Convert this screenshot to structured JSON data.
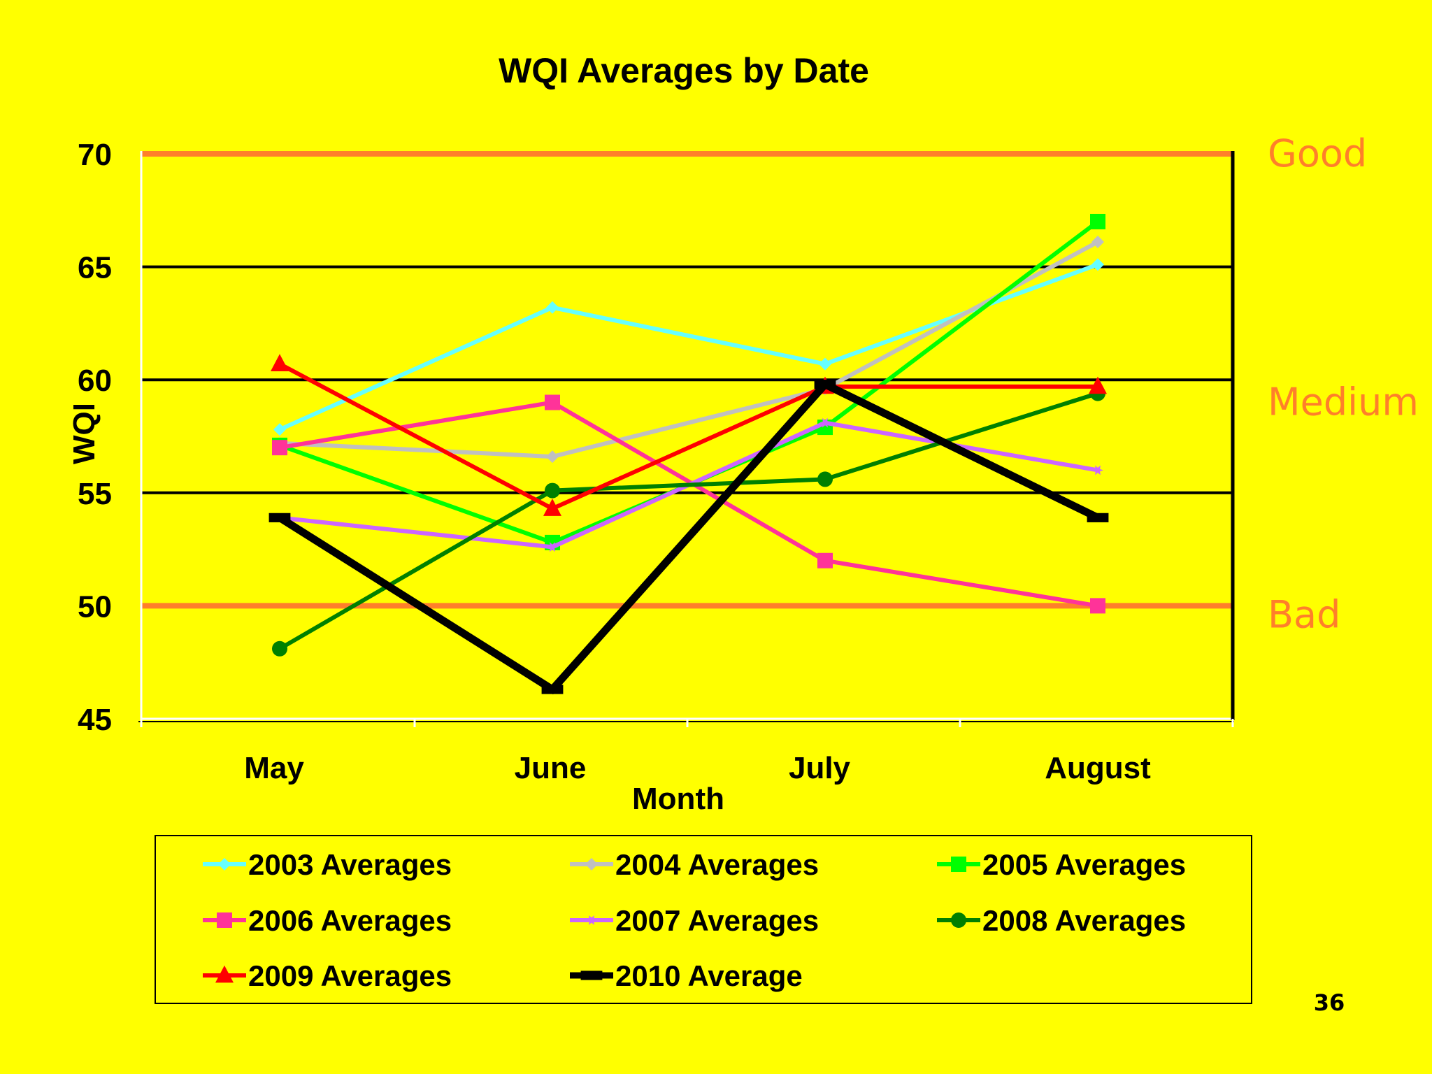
{
  "chart_data": {
    "type": "line",
    "title": "WQI Averages by Date",
    "xlabel": "Month",
    "ylabel": "WQI",
    "categories": [
      "May",
      "June",
      "July",
      "August"
    ],
    "ylim": [
      45,
      70
    ],
    "yticks": [
      45,
      50,
      55,
      60,
      65,
      70
    ],
    "grid": true,
    "legend_position": "bottom",
    "reference_lines": [
      {
        "label": "Good",
        "value": 70,
        "color": "#ff7f2a"
      },
      {
        "label": "Bad",
        "value": 50,
        "color": "#ff7f2a"
      }
    ],
    "zone_labels": [
      {
        "label": "Good",
        "value": 70
      },
      {
        "label": "Medium",
        "value": 59
      },
      {
        "label": "Bad",
        "value": 49.6
      }
    ],
    "series": [
      {
        "name": "2003 Averages",
        "values": [
          57.8,
          63.2,
          60.7,
          65.1
        ],
        "color": "#66ffff",
        "marker": "diamond"
      },
      {
        "name": "2004 Averages",
        "values": [
          57.2,
          56.6,
          59.6,
          66.1
        ],
        "color": "#c0c0c0",
        "marker": "diamond"
      },
      {
        "name": "2005 Averages",
        "values": [
          57.1,
          52.8,
          57.9,
          67.0
        ],
        "color": "#00ff00",
        "marker": "square"
      },
      {
        "name": "2006 Averages",
        "values": [
          57.0,
          59.0,
          52.0,
          50.0
        ],
        "color": "#ff3399",
        "marker": "square"
      },
      {
        "name": "2007 Averages",
        "values": [
          53.9,
          52.6,
          58.1,
          56.0
        ],
        "color": "#cc66ff",
        "marker": "star"
      },
      {
        "name": "2008 Averages",
        "values": [
          48.1,
          55.1,
          55.6,
          59.4
        ],
        "color": "#008000",
        "marker": "circle"
      },
      {
        "name": "2009 Averages",
        "values": [
          60.7,
          54.3,
          59.7,
          59.7
        ],
        "color": "#ff0000",
        "marker": "triangle"
      },
      {
        "name": "2010 Average",
        "values": [
          53.9,
          46.3,
          59.8,
          53.9
        ],
        "color": "#000000",
        "marker": "dash"
      }
    ]
  },
  "page": {
    "number": "36",
    "background": "#ffff00"
  }
}
